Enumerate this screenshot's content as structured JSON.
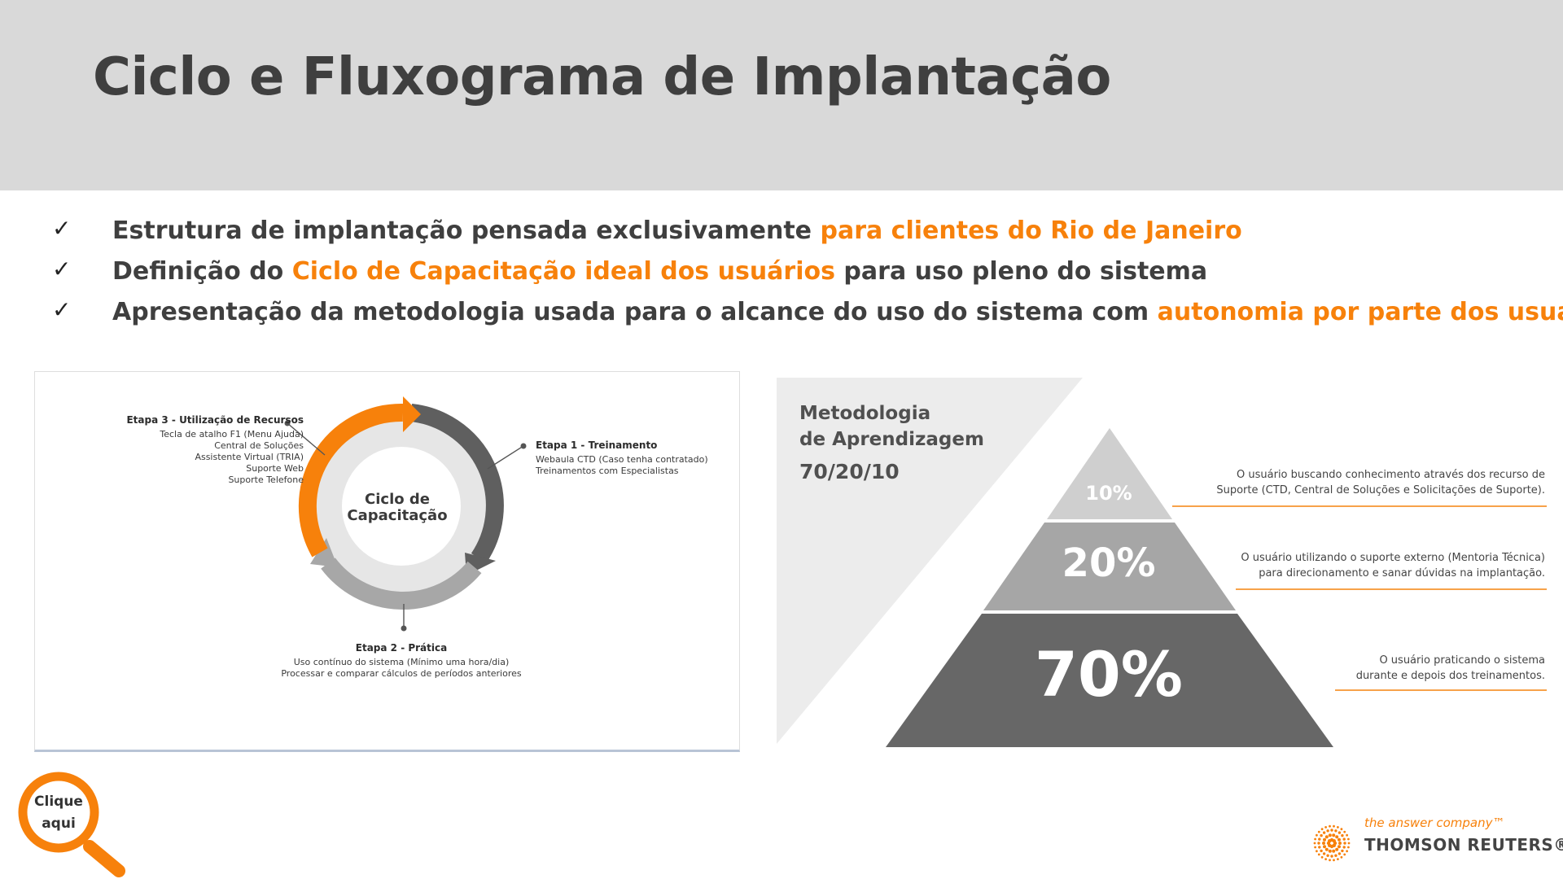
{
  "title": "Ciclo e Fluxograma de Implantação",
  "bullets": [
    {
      "check": "✓",
      "before": "Estrutura de implantação pensada exclusivamente ",
      "highlight": "para clientes do Rio de Janeiro",
      "after": ""
    },
    {
      "check": "✓",
      "before": "Definição do ",
      "highlight": "Ciclo de Capacitação ideal dos usuários",
      "after": " para uso pleno do sistema"
    },
    {
      "check": "✓",
      "before": "Apresentação da metodologia usada para o alcance do uso do sistema com ",
      "highlight": "autonomia por parte dos usuários",
      "after": ""
    }
  ],
  "cycle": {
    "center_line1": "Ciclo de",
    "center_line2": "Capacitação",
    "etapa3": {
      "title": "Etapa 3 - Utilização de Recursos",
      "items": [
        "Tecla de atalho F1 (Menu Ajuda)",
        "Central de Soluções",
        "Assistente Virtual (TRIA)",
        "Suporte Web",
        "Suporte Telefone"
      ]
    },
    "etapa1": {
      "title": "Etapa 1 - Treinamento",
      "items": [
        "Webaula CTD (Caso tenha contratado)",
        "Treinamentos com Especialistas"
      ]
    },
    "etapa2": {
      "title": "Etapa 2 - Prática",
      "items": [
        "Uso contínuo do sistema (Mínimo uma hora/dia)",
        "Processar e comparar cálculos de períodos anteriores"
      ]
    }
  },
  "pyramid": {
    "heading_line1": "Metodologia",
    "heading_line2": "de Aprendizagem",
    "ratio": "70/20/10",
    "levels": [
      {
        "pct": "10%",
        "desc_line1": "O usuário buscando conhecimento através dos recurso de",
        "desc_line2": "Suporte (CTD, Central de Soluções e Solicitações de Suporte)."
      },
      {
        "pct": "20%",
        "desc_line1": "O usuário utilizando o suporte externo (Mentoria Técnica)",
        "desc_line2": "para direcionamento e sanar dúvidas na implantação."
      },
      {
        "pct": "70%",
        "desc_line1": "O usuário praticando o sistema",
        "desc_line2": "durante e depois dos treinamentos."
      }
    ],
    "colors": {
      "top": "#cfcfcf",
      "middle": "#a6a6a6",
      "bottom": "#676767",
      "accent": "#f7a24a"
    }
  },
  "clique": {
    "line1": "Clique",
    "line2": "aqui"
  },
  "brand": {
    "tagline": "the answer company™",
    "name": "THOMSON REUTERS®"
  },
  "colors": {
    "accent": "#f7810b",
    "header_bg": "#d9d9d9",
    "title": "#3f3f3f"
  }
}
